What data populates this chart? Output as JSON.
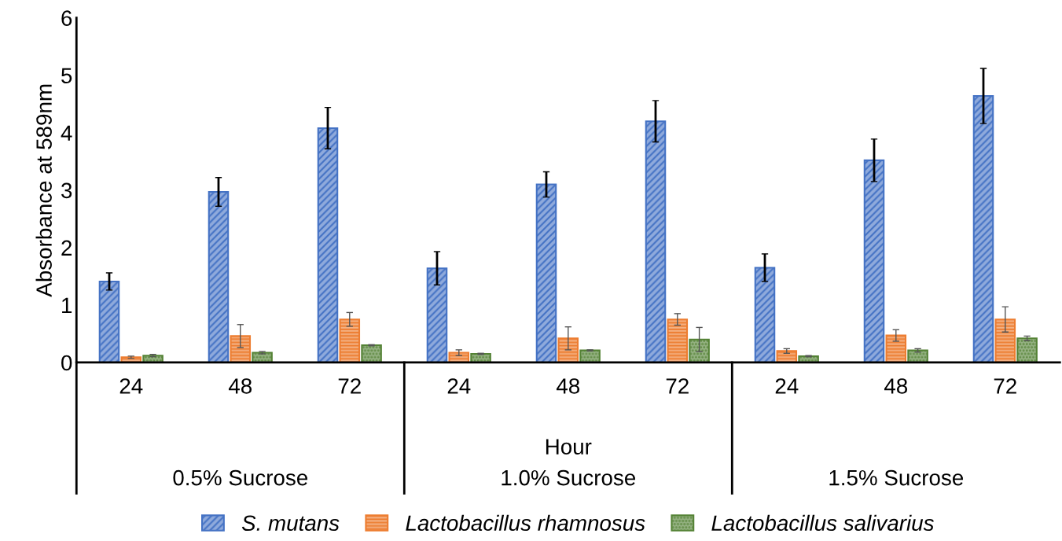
{
  "chart_data": {
    "type": "bar",
    "ylabel": "Absorbance at 589nm",
    "xlabel": "Hour",
    "categories": [
      "24",
      "48",
      "72",
      "24",
      "48",
      "72",
      "24",
      "48",
      "72"
    ],
    "annotations": [
      "0.5% Sucrose",
      "1.0% Sucrose",
      "1.5% Sucrose"
    ],
    "series": [
      {
        "name": "S. mutans",
        "color": "#4472c4",
        "values": [
          1.41,
          2.97,
          4.08,
          1.64,
          3.1,
          4.2,
          1.65,
          3.52,
          4.64
        ],
        "errors": [
          0.15,
          0.25,
          0.36,
          0.29,
          0.22,
          0.36,
          0.24,
          0.37,
          0.48
        ]
      },
      {
        "name": "Lactobacillus rhamnosus",
        "color": "#ed7d31",
        "values": [
          0.09,
          0.46,
          0.75,
          0.17,
          0.42,
          0.75,
          0.2,
          0.47,
          0.75
        ],
        "errors": [
          0.02,
          0.2,
          0.12,
          0.05,
          0.2,
          0.1,
          0.04,
          0.1,
          0.22
        ]
      },
      {
        "name": "Lactobacillus salivarius",
        "color": "#548235",
        "values": [
          0.12,
          0.17,
          0.3,
          0.15,
          0.21,
          0.4,
          0.11,
          0.21,
          0.42
        ],
        "errors": [
          0.02,
          0.02,
          0.01,
          0.01,
          0.01,
          0.21,
          0.01,
          0.03,
          0.04
        ]
      }
    ],
    "ylim": [
      0,
      6
    ],
    "yticks": [
      0,
      1,
      2,
      3,
      4,
      5,
      6
    ],
    "legend": "bottom"
  }
}
